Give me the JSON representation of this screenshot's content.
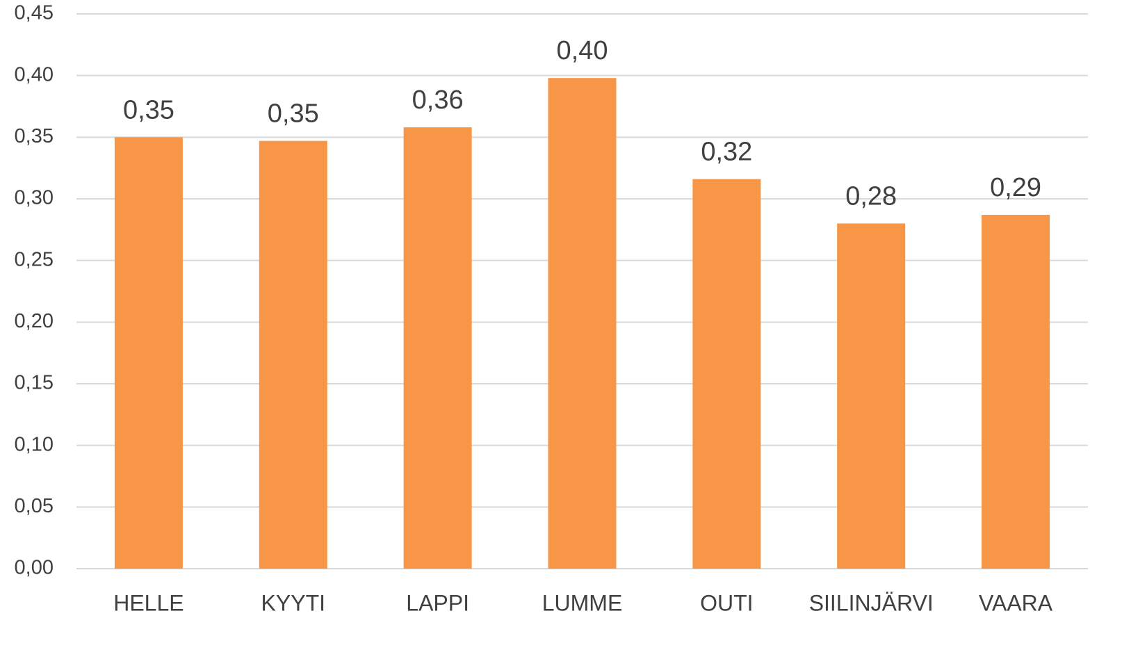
{
  "chart_data": {
    "type": "bar",
    "categories": [
      "HELLE",
      "KYYTI",
      "LAPPI",
      "LUMME",
      "OUTI",
      "SIILINJÄRVI",
      "VAARA"
    ],
    "values": [
      0.35,
      0.347,
      0.358,
      0.398,
      0.316,
      0.28,
      0.287
    ],
    "value_labels": [
      "0,35",
      "0,35",
      "0,36",
      "0,40",
      "0,32",
      "0,28",
      "0,29"
    ],
    "color": "#f79646",
    "ylim": [
      0,
      0.45
    ],
    "yticks": [
      {
        "value": 0,
        "label": "0,00"
      },
      {
        "value": 0.05,
        "label": "0,05"
      },
      {
        "value": 0.1,
        "label": "0,10"
      },
      {
        "value": 0.15,
        "label": "0,15"
      },
      {
        "value": 0.2,
        "label": "0,20"
      },
      {
        "value": 0.25,
        "label": "0,25"
      },
      {
        "value": 0.3,
        "label": "0,30"
      },
      {
        "value": 0.35,
        "label": "0,35"
      },
      {
        "value": 0.4,
        "label": "0,40"
      },
      {
        "value": 0.45,
        "label": "0,45"
      }
    ],
    "grid": true
  }
}
